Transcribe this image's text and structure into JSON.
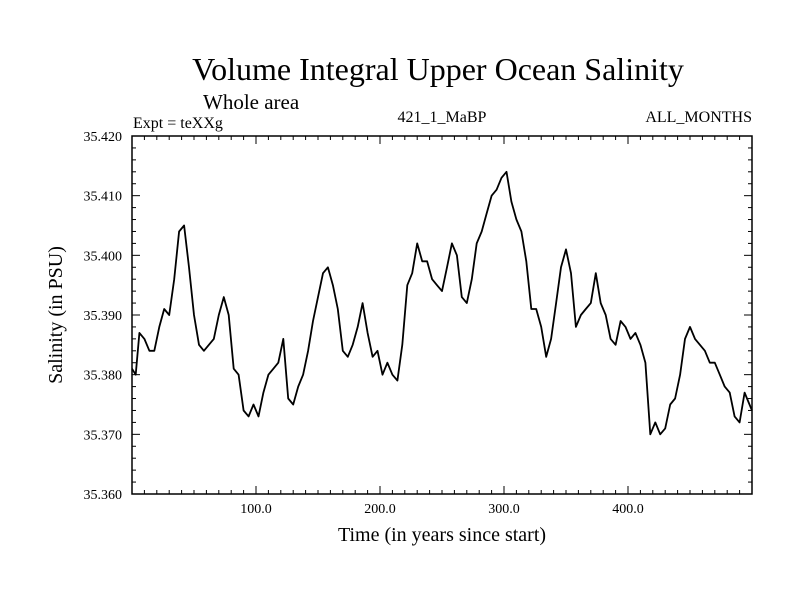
{
  "chart_data": {
    "type": "line",
    "title": "Volume Integral Upper Ocean Salinity",
    "subtitle": "Whole area",
    "annotations": {
      "left": "Expt = teXXg",
      "center": "421_1_MaBP",
      "right": "ALL_MONTHS"
    },
    "xlabel": "Time (in years since start)",
    "ylabel": "Salinity (in PSU)",
    "xlim": [
      0,
      500
    ],
    "ylim": [
      35.36,
      35.42
    ],
    "x_ticks": [
      100,
      200,
      300,
      400
    ],
    "x_tick_labels": [
      "100.0",
      "200.0",
      "300.0",
      "400.0"
    ],
    "y_ticks": [
      35.36,
      35.37,
      35.38,
      35.39,
      35.4,
      35.41,
      35.42
    ],
    "y_tick_labels": [
      "35.360",
      "35.370",
      "35.380",
      "35.390",
      "35.400",
      "35.410",
      "35.420"
    ],
    "series": [
      {
        "name": "Salinity",
        "x": [
          0,
          3,
          6,
          10,
          14,
          18,
          22,
          26,
          30,
          34,
          38,
          42,
          46,
          50,
          54,
          58,
          62,
          66,
          70,
          74,
          78,
          82,
          86,
          90,
          94,
          98,
          102,
          106,
          110,
          114,
          118,
          122,
          126,
          130,
          134,
          138,
          142,
          146,
          150,
          154,
          158,
          162,
          166,
          170,
          174,
          178,
          182,
          186,
          190,
          194,
          198,
          202,
          206,
          210,
          214,
          218,
          222,
          226,
          230,
          234,
          238,
          242,
          246,
          250,
          254,
          258,
          262,
          266,
          270,
          274,
          278,
          282,
          286,
          290,
          294,
          298,
          302,
          306,
          310,
          314,
          318,
          322,
          326,
          330,
          334,
          338,
          342,
          346,
          350,
          354,
          358,
          362,
          366,
          370,
          374,
          378,
          382,
          386,
          390,
          394,
          398,
          402,
          406,
          410,
          414,
          418,
          422,
          426,
          430,
          434,
          438,
          442,
          446,
          450,
          454,
          458,
          462,
          466,
          470,
          474,
          478,
          482,
          486,
          490,
          494,
          498,
          500
        ],
        "values": [
          35.381,
          35.38,
          35.387,
          35.386,
          35.384,
          35.384,
          35.388,
          35.391,
          35.39,
          35.396,
          35.404,
          35.405,
          35.398,
          35.39,
          35.385,
          35.384,
          35.385,
          35.386,
          35.39,
          35.393,
          35.39,
          35.381,
          35.38,
          35.374,
          35.373,
          35.375,
          35.373,
          35.377,
          35.38,
          35.381,
          35.382,
          35.386,
          35.376,
          35.375,
          35.378,
          35.38,
          35.384,
          35.389,
          35.393,
          35.397,
          35.398,
          35.395,
          35.391,
          35.384,
          35.383,
          35.385,
          35.388,
          35.392,
          35.387,
          35.383,
          35.384,
          35.38,
          35.382,
          35.38,
          35.379,
          35.385,
          35.395,
          35.397,
          35.402,
          35.399,
          35.399,
          35.396,
          35.395,
          35.394,
          35.398,
          35.402,
          35.4,
          35.393,
          35.392,
          35.396,
          35.402,
          35.404,
          35.407,
          35.41,
          35.411,
          35.413,
          35.414,
          35.409,
          35.406,
          35.404,
          35.399,
          35.391,
          35.391,
          35.388,
          35.383,
          35.386,
          35.392,
          35.398,
          35.401,
          35.397,
          35.388,
          35.39,
          35.391,
          35.392,
          35.397,
          35.392,
          35.39,
          35.386,
          35.385,
          35.389,
          35.388,
          35.386,
          35.387,
          35.385,
          35.382,
          35.37,
          35.372,
          35.37,
          35.371,
          35.375,
          35.376,
          35.38,
          35.386,
          35.388,
          35.386,
          35.385,
          35.384,
          35.382,
          35.382,
          35.38,
          35.378,
          35.377,
          35.373,
          35.372,
          35.377,
          35.375,
          35.374
        ]
      }
    ]
  }
}
